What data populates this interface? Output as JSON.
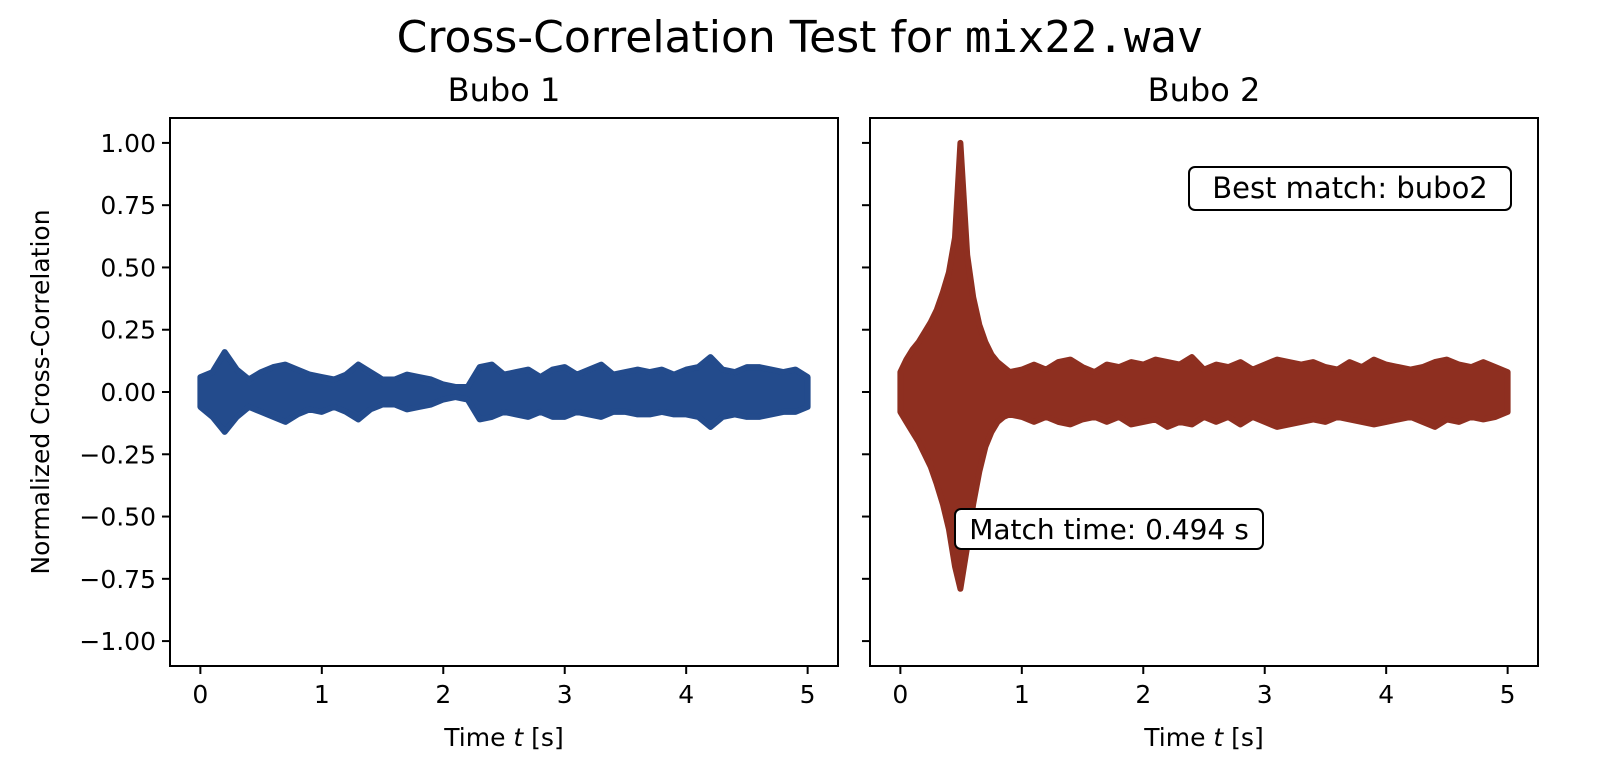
{
  "figure": {
    "title_prefix": "Cross-Correlation Test for ",
    "title_file": "mix22.wav"
  },
  "chart_data": [
    {
      "type": "line",
      "title": "Bubo 1",
      "xlabel_pre": "Time ",
      "xlabel_var": "t",
      "xlabel_post": " [s]",
      "ylabel": "Normalized Cross-Correlation",
      "xlim": [
        -0.25,
        5.25
      ],
      "ylim": [
        -1.1,
        1.1
      ],
      "xticks": [
        0,
        1,
        2,
        3,
        4,
        5
      ],
      "xtick_labels": [
        "0",
        "1",
        "2",
        "3",
        "4",
        "5"
      ],
      "yticks": [
        1.0,
        0.75,
        0.5,
        0.25,
        0.0,
        -0.25,
        -0.5,
        -0.75,
        -1.0
      ],
      "ytick_labels": [
        "1.00",
        "0.75",
        "0.50",
        "0.25",
        "0.00",
        "−0.25",
        "−0.50",
        "−0.75",
        "−1.00"
      ],
      "color": "#234b8c",
      "envelope": {
        "t": [
          0,
          0.1,
          0.2,
          0.3,
          0.4,
          0.5,
          0.6,
          0.7,
          0.8,
          0.9,
          1.0,
          1.1,
          1.2,
          1.3,
          1.4,
          1.5,
          1.6,
          1.7,
          1.8,
          1.9,
          2.0,
          2.1,
          2.2,
          2.3,
          2.4,
          2.5,
          2.6,
          2.7,
          2.8,
          2.9,
          3.0,
          3.1,
          3.2,
          3.3,
          3.4,
          3.5,
          3.6,
          3.7,
          3.8,
          3.9,
          4.0,
          4.1,
          4.2,
          4.3,
          4.4,
          4.5,
          4.6,
          4.7,
          4.8,
          4.9,
          5.0
        ],
        "upper": [
          0.06,
          0.08,
          0.16,
          0.09,
          0.05,
          0.08,
          0.1,
          0.11,
          0.09,
          0.07,
          0.06,
          0.05,
          0.07,
          0.11,
          0.08,
          0.05,
          0.05,
          0.07,
          0.06,
          0.05,
          0.03,
          0.02,
          0.02,
          0.1,
          0.11,
          0.07,
          0.08,
          0.09,
          0.06,
          0.09,
          0.1,
          0.07,
          0.09,
          0.11,
          0.07,
          0.08,
          0.09,
          0.08,
          0.09,
          0.07,
          0.09,
          0.1,
          0.14,
          0.09,
          0.08,
          0.1,
          0.1,
          0.09,
          0.08,
          0.09,
          0.06
        ],
        "lower": [
          -0.06,
          -0.1,
          -0.16,
          -0.1,
          -0.06,
          -0.08,
          -0.1,
          -0.12,
          -0.09,
          -0.07,
          -0.08,
          -0.06,
          -0.08,
          -0.11,
          -0.07,
          -0.05,
          -0.05,
          -0.07,
          -0.06,
          -0.05,
          -0.03,
          -0.02,
          -0.03,
          -0.11,
          -0.1,
          -0.08,
          -0.09,
          -0.1,
          -0.08,
          -0.1,
          -0.1,
          -0.08,
          -0.09,
          -0.1,
          -0.08,
          -0.08,
          -0.09,
          -0.09,
          -0.08,
          -0.09,
          -0.09,
          -0.1,
          -0.14,
          -0.1,
          -0.09,
          -0.1,
          -0.1,
          -0.09,
          -0.08,
          -0.08,
          -0.06
        ]
      }
    },
    {
      "type": "line",
      "title": "Bubo 2",
      "xlabel_pre": "Time ",
      "xlabel_var": "t",
      "xlabel_post": " [s]",
      "xlim": [
        -0.25,
        5.25
      ],
      "ylim": [
        -1.1,
        1.1
      ],
      "xticks": [
        0,
        1,
        2,
        3,
        4,
        5
      ],
      "xtick_labels": [
        "0",
        "1",
        "2",
        "3",
        "4",
        "5"
      ],
      "color": "#8e2f20",
      "annotations": {
        "best_match": "Best match: bubo2",
        "match_time": "Match time: 0.494 s"
      },
      "match_time_value": 0.494,
      "envelope": {
        "t": [
          0,
          0.05,
          0.1,
          0.15,
          0.2,
          0.25,
          0.3,
          0.35,
          0.4,
          0.45,
          0.494,
          0.55,
          0.6,
          0.65,
          0.7,
          0.75,
          0.8,
          0.85,
          0.9,
          1.0,
          1.1,
          1.2,
          1.3,
          1.4,
          1.5,
          1.6,
          1.7,
          1.8,
          1.9,
          2.0,
          2.1,
          2.2,
          2.3,
          2.4,
          2.5,
          2.6,
          2.7,
          2.8,
          2.9,
          3.0,
          3.1,
          3.2,
          3.3,
          3.4,
          3.5,
          3.6,
          3.7,
          3.8,
          3.9,
          4.0,
          4.1,
          4.2,
          4.3,
          4.4,
          4.5,
          4.6,
          4.7,
          4.8,
          4.9,
          5.0
        ],
        "upper": [
          0.08,
          0.13,
          0.17,
          0.2,
          0.24,
          0.28,
          0.33,
          0.4,
          0.48,
          0.62,
          1.0,
          0.55,
          0.38,
          0.27,
          0.2,
          0.15,
          0.12,
          0.1,
          0.08,
          0.09,
          0.11,
          0.09,
          0.12,
          0.13,
          0.1,
          0.08,
          0.11,
          0.1,
          0.12,
          0.11,
          0.13,
          0.12,
          0.11,
          0.14,
          0.09,
          0.11,
          0.1,
          0.12,
          0.09,
          0.11,
          0.13,
          0.12,
          0.11,
          0.12,
          0.1,
          0.09,
          0.12,
          0.1,
          0.13,
          0.11,
          0.1,
          0.09,
          0.1,
          0.12,
          0.13,
          0.11,
          0.1,
          0.12,
          0.1,
          0.08
        ],
        "lower": [
          -0.08,
          -0.12,
          -0.16,
          -0.2,
          -0.25,
          -0.3,
          -0.37,
          -0.45,
          -0.55,
          -0.7,
          -0.79,
          -0.62,
          -0.45,
          -0.32,
          -0.22,
          -0.16,
          -0.12,
          -0.1,
          -0.09,
          -0.1,
          -0.12,
          -0.1,
          -0.12,
          -0.13,
          -0.11,
          -0.1,
          -0.12,
          -0.1,
          -0.13,
          -0.12,
          -0.11,
          -0.14,
          -0.12,
          -0.13,
          -0.1,
          -0.12,
          -0.1,
          -0.13,
          -0.1,
          -0.12,
          -0.14,
          -0.13,
          -0.12,
          -0.11,
          -0.12,
          -0.1,
          -0.11,
          -0.12,
          -0.13,
          -0.12,
          -0.11,
          -0.1,
          -0.12,
          -0.14,
          -0.11,
          -0.12,
          -0.1,
          -0.11,
          -0.1,
          -0.08
        ]
      }
    }
  ]
}
